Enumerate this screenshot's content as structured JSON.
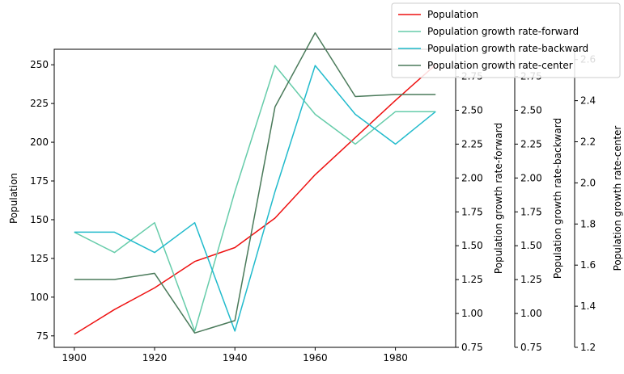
{
  "chart_data": {
    "type": "line",
    "x": [
      1900,
      1910,
      1920,
      1930,
      1940,
      1950,
      1960,
      1970,
      1980,
      1990
    ],
    "xticks": [
      1900,
      1920,
      1940,
      1960,
      1980
    ],
    "xlim": [
      1895,
      1995
    ],
    "xlabel": "",
    "title": "",
    "legend_position": "top-right",
    "series": [
      {
        "name": "Population",
        "axis": "left",
        "color": "#ee1111",
        "values": [
          76,
          92,
          106,
          123,
          132,
          151,
          179,
          203,
          227,
          250
        ]
      },
      {
        "name": "Population growth rate-forward",
        "axis": "right1",
        "color": "#66ccaa",
        "values": [
          1.6,
          1.45,
          1.67,
          0.87,
          1.9,
          2.83,
          2.47,
          2.25,
          2.49,
          2.49
        ]
      },
      {
        "name": "Population growth rate-backward",
        "axis": "right2",
        "color": "#22bbcc",
        "values": [
          1.6,
          1.6,
          1.45,
          1.67,
          0.87,
          1.9,
          2.83,
          2.47,
          2.25,
          2.49
        ]
      },
      {
        "name": "Population growth rate-center",
        "axis": "right3",
        "color": "#4a7a5a",
        "values": [
          1.53,
          1.53,
          1.56,
          1.27,
          1.33,
          2.37,
          2.73,
          2.42,
          2.43,
          2.43
        ]
      }
    ],
    "axes": {
      "left": {
        "label": "Population",
        "ylim": [
          67.6,
          260
        ],
        "ticks": [
          75,
          100,
          125,
          150,
          175,
          200,
          225,
          250
        ]
      },
      "right1": {
        "label": "Population growth rate-forward",
        "ylim": [
          0.75,
          2.95
        ],
        "ticks": [
          0.75,
          1.0,
          1.25,
          1.5,
          1.75,
          2.0,
          2.25,
          2.5,
          2.75
        ]
      },
      "right2": {
        "label": "Population growth rate-backward",
        "ylim": [
          0.75,
          2.95
        ],
        "ticks": [
          0.75,
          1.0,
          1.25,
          1.5,
          1.75,
          2.0,
          2.25,
          2.5,
          2.75
        ]
      },
      "right3": {
        "label": "Population growth rate-center",
        "ylim": [
          1.2,
          2.65
        ],
        "ticks": [
          1.2,
          1.4,
          1.6,
          1.8,
          2.0,
          2.2,
          2.4,
          2.6
        ]
      }
    }
  }
}
